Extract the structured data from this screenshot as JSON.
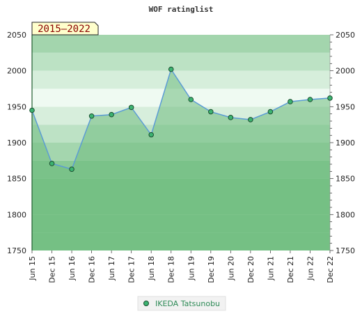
{
  "chart_data": {
    "type": "line",
    "title": "WOF ratinglist",
    "period_label": "2015–2022",
    "x": [
      "Jun 15",
      "Dec 15",
      "Jun 16",
      "Dec 16",
      "Jun 17",
      "Dec 17",
      "Jun 18",
      "Dec 18",
      "Jun 19",
      "Dec 19",
      "Jun 20",
      "Dec 20",
      "Jun 21",
      "Dec 21",
      "Jun 22",
      "Dec 22"
    ],
    "series": [
      {
        "name": "IKEDA Tatsunobu",
        "values": [
          1945,
          1871,
          1863,
          1937,
          1939,
          1949,
          1911,
          2002,
          1960,
          1943,
          1935,
          1932,
          1943,
          1957,
          1960,
          1962
        ]
      }
    ],
    "ylim": [
      1750,
      2050
    ],
    "yticks": [
      1750,
      1800,
      1850,
      1900,
      1950,
      2000,
      2050
    ],
    "grid": false,
    "legend": "bottom-center",
    "colors": {
      "line": "#5b9bd5",
      "marker_fill": "#3cb371",
      "marker_stroke": "#1a4d2e",
      "fill_under": "#6dbb7d",
      "band_light": "#f0faf2",
      "band_dark": "#4fae62"
    }
  }
}
